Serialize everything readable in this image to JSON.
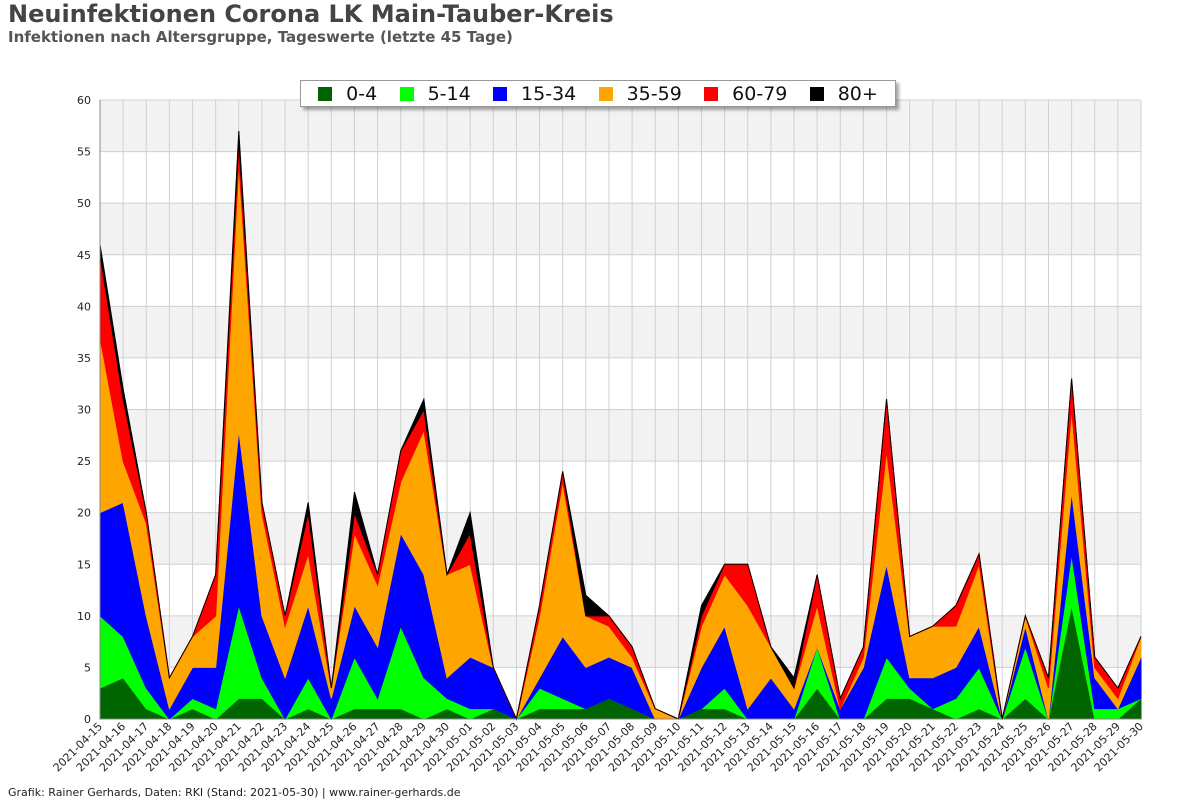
{
  "chart_data": {
    "type": "area",
    "stacked": true,
    "title": "Neuinfektionen Corona LK Main-Tauber-Kreis",
    "subtitle": "Infektionen nach Altersgruppe, Tageswerte (letzte 45 Tage)",
    "footer": "Grafik: Rainer Gerhards, Daten: RKI (Stand: 2021-05-30) | www.rainer-gerhards.de",
    "x": [
      "2021-04-15",
      "2021-04-16",
      "2021-04-17",
      "2021-04-18",
      "2021-04-19",
      "2021-04-20",
      "2021-04-21",
      "2021-04-22",
      "2021-04-23",
      "2021-04-24",
      "2021-04-25",
      "2021-04-26",
      "2021-04-27",
      "2021-04-28",
      "2021-04-29",
      "2021-04-30",
      "2021-05-01",
      "2021-05-02",
      "2021-05-03",
      "2021-05-04",
      "2021-05-05",
      "2021-05-06",
      "2021-05-07",
      "2021-05-08",
      "2021-05-09",
      "2021-05-10",
      "2021-05-11",
      "2021-05-12",
      "2021-05-13",
      "2021-05-14",
      "2021-05-15",
      "2021-05-16",
      "2021-05-17",
      "2021-05-18",
      "2021-05-19",
      "2021-05-20",
      "2021-05-21",
      "2021-05-22",
      "2021-05-23",
      "2021-05-24",
      "2021-05-25",
      "2021-05-26",
      "2021-05-27",
      "2021-05-28",
      "2021-05-29",
      "2021-05-30"
    ],
    "ylim": [
      0,
      60
    ],
    "yticks": [
      0,
      5,
      10,
      15,
      20,
      25,
      30,
      35,
      40,
      45,
      50,
      55,
      60
    ],
    "grid": true,
    "legend_position": "top-center",
    "series": [
      {
        "name": "0-4",
        "color": "#006400",
        "values": [
          3,
          4,
          1,
          0,
          1,
          0,
          2,
          2,
          0,
          1,
          0,
          1,
          1,
          1,
          0,
          1,
          0,
          1,
          0,
          1,
          1,
          1,
          2,
          1,
          0,
          0,
          1,
          1,
          0,
          0,
          0,
          3,
          0,
          0,
          2,
          2,
          1,
          0,
          1,
          0,
          2,
          0,
          11,
          0,
          0,
          2
        ]
      },
      {
        "name": "5-14",
        "color": "#00ff00",
        "values": [
          7,
          4,
          2,
          0,
          1,
          1,
          9,
          2,
          0,
          3,
          0,
          5,
          1,
          8,
          4,
          1,
          1,
          0,
          0,
          2,
          1,
          0,
          0,
          0,
          0,
          0,
          0,
          2,
          0,
          0,
          0,
          4,
          0,
          0,
          4,
          1,
          0,
          2,
          4,
          0,
          5,
          0,
          5,
          1,
          1,
          0
        ]
      },
      {
        "name": "15-34",
        "color": "#0000ff",
        "values": [
          10,
          13,
          7,
          1,
          3,
          4,
          17,
          6,
          4,
          7,
          2,
          5,
          5,
          9,
          10,
          2,
          5,
          4,
          0,
          1,
          6,
          4,
          4,
          4,
          0,
          0,
          4,
          6,
          1,
          4,
          1,
          0,
          1,
          5,
          9,
          1,
          3,
          3,
          4,
          0,
          2,
          0,
          6,
          3,
          0,
          4
        ]
      },
      {
        "name": "35-59",
        "color": "#ffa500",
        "values": [
          17,
          4,
          9,
          3,
          3,
          5,
          26,
          10,
          5,
          5,
          1,
          7,
          6,
          5,
          14,
          10,
          9,
          0,
          0,
          6,
          15,
          5,
          3,
          1,
          1,
          0,
          4,
          5,
          10,
          3,
          2,
          4,
          0,
          1,
          11,
          4,
          5,
          4,
          6,
          0,
          1,
          3,
          8,
          1,
          1,
          2
        ]
      },
      {
        "name": "60-79",
        "color": "#ff0000",
        "values": [
          8,
          6,
          1,
          0,
          0,
          4,
          2,
          1,
          1,
          4,
          0,
          2,
          1,
          3,
          2,
          0,
          3,
          0,
          0,
          1,
          1,
          0,
          1,
          1,
          0,
          0,
          1,
          1,
          4,
          0,
          0,
          3,
          1,
          1,
          5,
          0,
          0,
          2,
          1,
          0,
          0,
          1,
          3,
          1,
          1,
          0
        ]
      },
      {
        "name": "80+",
        "color": "#000000",
        "values": [
          1,
          1,
          0,
          0,
          0,
          0,
          1,
          0,
          0,
          1,
          0,
          2,
          0,
          0,
          1,
          0,
          2,
          0,
          0,
          0,
          0,
          2,
          0,
          0,
          0,
          0,
          1,
          0,
          0,
          0,
          1,
          0,
          0,
          0,
          0,
          0,
          0,
          0,
          0,
          0,
          0,
          0,
          0,
          0,
          0,
          0
        ]
      }
    ]
  }
}
